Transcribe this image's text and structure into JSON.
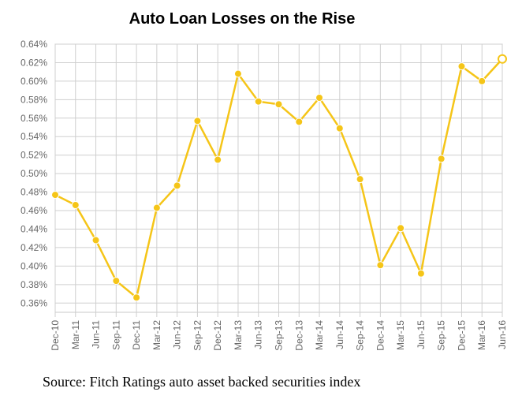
{
  "chart_data": {
    "type": "line",
    "title": "Auto Loan Losses on the Rise",
    "xlabel": "",
    "ylabel": "",
    "categories": [
      "Dec-10",
      "Mar-11",
      "Jun-11",
      "Sep-11",
      "Dec-11",
      "Mar-12",
      "Jun-12",
      "Sep-12",
      "Dec-12",
      "Mar-13",
      "Jun-13",
      "Sep-13",
      "Dec-13",
      "Mar-14",
      "Jun-14",
      "Sep-14",
      "Dec-14",
      "Mar-15",
      "Jun-15",
      "Sep-15",
      "Dec-15",
      "Mar-16",
      "Jun-16"
    ],
    "values": [
      0.477,
      0.466,
      0.428,
      0.384,
      0.366,
      0.463,
      0.487,
      0.557,
      0.515,
      0.608,
      0.578,
      0.575,
      0.556,
      0.582,
      0.549,
      0.494,
      0.401,
      0.441,
      0.392,
      0.516,
      0.616,
      0.6,
      0.624
    ],
    "ylim": [
      0.35,
      0.64
    ],
    "yticks": [
      "0.36%",
      "0.38%",
      "0.40%",
      "0.42%",
      "0.44%",
      "0.46%",
      "0.48%",
      "0.50%",
      "0.52%",
      "0.54%",
      "0.56%",
      "0.58%",
      "0.60%",
      "0.62%",
      "0.64%"
    ],
    "grid": true,
    "line_color": "#f5c518",
    "last_point_style": "hollow"
  },
  "source": "Source: Fitch Ratings auto asset backed securities index"
}
